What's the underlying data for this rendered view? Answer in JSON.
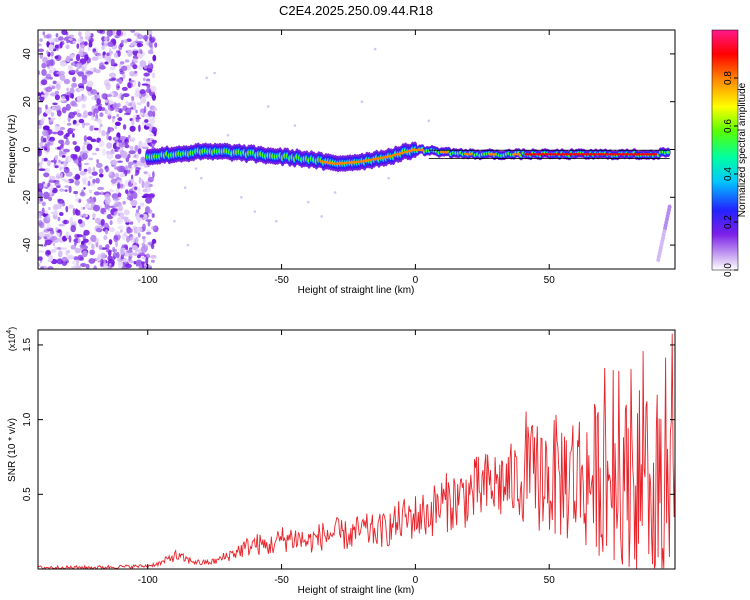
{
  "title": "C2E4.2025.250.09.44.R18",
  "chart_data": [
    {
      "type": "heatmap",
      "xlabel": "Height of straight line (km)",
      "ylabel": "Frequency (Hz)",
      "xlim": [
        -141,
        97
      ],
      "ylim": [
        -50,
        50
      ],
      "xticks": [
        -100,
        -50,
        0,
        50
      ],
      "yticks": [
        -40,
        -20,
        0,
        20,
        40
      ],
      "ridge": {
        "x": [
          -100,
          -90,
          -80,
          -70,
          -60,
          -50,
          -40,
          -30,
          -20,
          -10,
          0,
          10,
          20,
          30,
          40,
          50,
          60,
          70,
          80,
          90,
          95
        ],
        "y": [
          -3,
          -2,
          -1,
          -1,
          -2,
          -3,
          -4,
          -6,
          -5,
          -3,
          0,
          -1,
          -2,
          -2,
          -2,
          -2,
          -2,
          -2,
          -2,
          -2,
          -1
        ]
      },
      "noise_region_x": [
        -141,
        -97
      ],
      "colorbar": {
        "label": "Normalized spectral amplitude",
        "range": [
          0,
          1
        ],
        "ticks": [
          "0.0",
          "0.2",
          "0.4",
          "0.6",
          "0.8"
        ]
      }
    },
    {
      "type": "line",
      "xlabel": "Height of straight line (km)",
      "ylabel": "SNR (10 * v/v)",
      "multiplier_label": "(x10",
      "multiplier_exp": "4",
      "multiplier_close": ")",
      "xlim": [
        -141,
        97
      ],
      "ylim": [
        0,
        1.6
      ],
      "xticks": [
        -100,
        -50,
        0,
        50
      ],
      "yticks": [
        "0.5",
        "1.0",
        "1.5"
      ],
      "series": [
        {
          "color": "#e8232a",
          "x": [
            -141,
            -120,
            -100,
            -95,
            -90,
            -85,
            -80,
            -75,
            -70,
            -65,
            -60,
            -55,
            -50,
            -45,
            -40,
            -35,
            -30,
            -25,
            -20,
            -15,
            -10,
            -5,
            0,
            5,
            10,
            15,
            20,
            25,
            30,
            35,
            40,
            45,
            50,
            55,
            60,
            65,
            70,
            75,
            80,
            85,
            90,
            95
          ],
          "y": [
            0.01,
            0.01,
            0.02,
            0.04,
            0.09,
            0.06,
            0.04,
            0.05,
            0.09,
            0.13,
            0.17,
            0.15,
            0.2,
            0.21,
            0.18,
            0.22,
            0.24,
            0.22,
            0.26,
            0.25,
            0.27,
            0.33,
            0.35,
            0.37,
            0.44,
            0.46,
            0.5,
            0.54,
            0.56,
            0.58,
            0.6,
            0.63,
            0.62,
            0.61,
            0.62,
            0.6,
            0.63,
            0.6,
            0.58,
            0.62,
            0.6,
            0.55
          ]
        }
      ]
    }
  ]
}
